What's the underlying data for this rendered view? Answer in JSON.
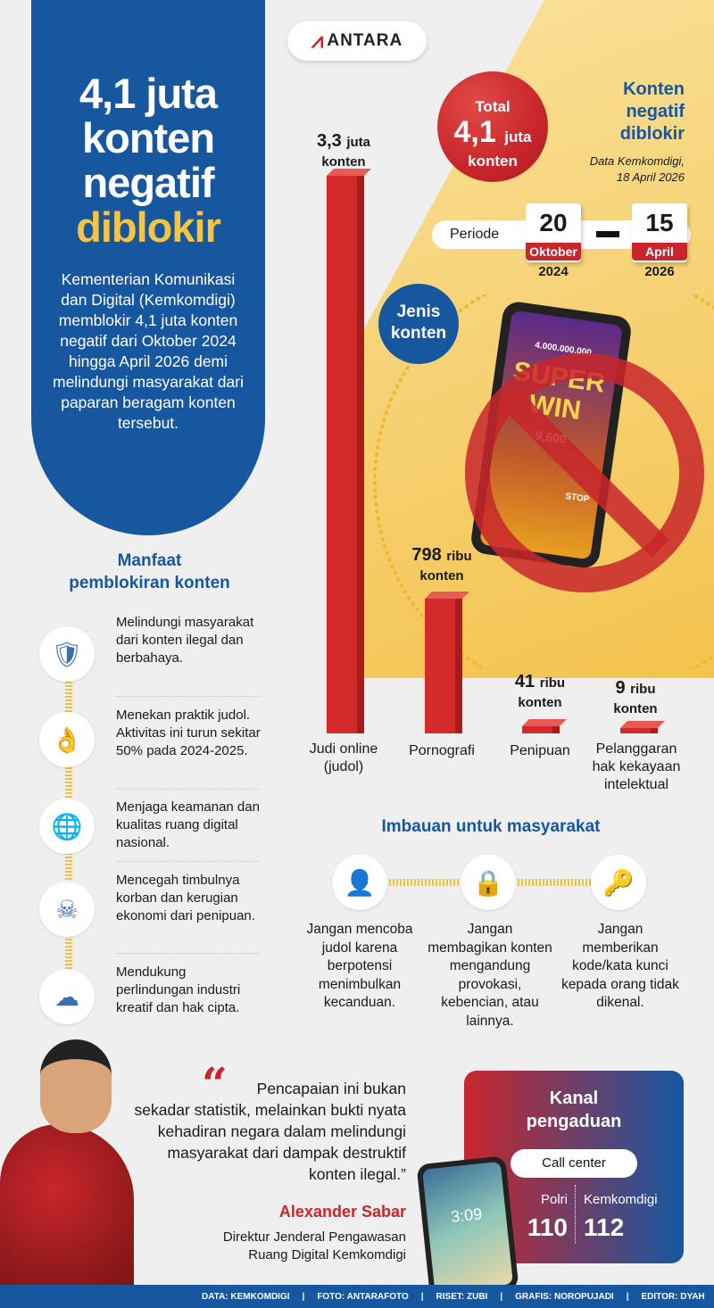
{
  "brand": {
    "logo_text": "ANTARA"
  },
  "header": {
    "title_line1": "4,1 juta",
    "title_line2": "konten",
    "title_line3": "negatif",
    "title_line4": "diblokir",
    "intro": "Kementerian Komunikasi dan Digital (Kemkomdigi) memblokir 4,1 juta konten negatif dari Oktober 2024 hingga April 2026 demi melindungi masyarakat dari paparan beragam konten tersebut."
  },
  "total": {
    "label": "Total",
    "value": "4,1",
    "unit": "juta",
    "suffix": "konten"
  },
  "side_title": {
    "line1": "Konten",
    "line2": "negatif",
    "line3": "diblokir",
    "source_line1": "Data Kemkomdigi,",
    "source_line2": "18 April 2026"
  },
  "periode": {
    "label": "Periode",
    "start_day": "20",
    "start_month": "Oktober",
    "start_year": "2024",
    "end_day": "15",
    "end_month": "April",
    "end_year": "2026"
  },
  "jenis_label": {
    "line1": "Jenis",
    "line2": "konten"
  },
  "chart_data": {
    "type": "bar",
    "categories": [
      "Judi online (judol)",
      "Pornografi",
      "Penipuan",
      "Pelanggaran hak kekayaan intelektual"
    ],
    "values": [
      3300000,
      798000,
      41000,
      9000
    ],
    "value_labels": [
      {
        "num": "3,3",
        "unit": "juta",
        "suffix": "konten"
      },
      {
        "num": "798",
        "unit": "ribu",
        "suffix": "konten"
      },
      {
        "num": "41",
        "unit": "ribu",
        "suffix": "konten"
      },
      {
        "num": "9",
        "unit": "ribu",
        "suffix": "konten"
      }
    ],
    "category_lines": [
      [
        "Judi online",
        "(judol)"
      ],
      [
        "Pornografi"
      ],
      [
        "Penipuan"
      ],
      [
        "Pelanggaran",
        "hak kekayaan",
        "intelektual"
      ]
    ],
    "bar_color": "#d42a2a",
    "grid": false
  },
  "phone_image": {
    "screen_amount": "4.000.000.000",
    "screen_text1": "SUPER",
    "screen_text2": "WIN",
    "screen_small": "9,600",
    "stop": "STOP"
  },
  "manfaat": {
    "title_line1": "Manfaat",
    "title_line2": "pemblokiran konten",
    "items": [
      {
        "icon": "shield-hand-icon",
        "text": "Melindungi masyarakat dari konten ilegal dan berbahaya."
      },
      {
        "icon": "hand-coin-icon",
        "text": "Menekan praktik judol. Aktivitas ini turun sekitar 50% pada 2024-2025."
      },
      {
        "icon": "monitor-globe-lock-icon",
        "text": "Menjaga keamanan dan kualitas ruang digital nasional."
      },
      {
        "icon": "monitor-skull-icon",
        "text": "Mencegah timbulnya korban dan kerugian ekonomi dari penipuan."
      },
      {
        "icon": "cloud-media-icon",
        "text": "Mendukung perlindungan industri kreatif dan hak cipta."
      }
    ]
  },
  "imbauan": {
    "title": "Imbauan untuk masyarakat",
    "items": [
      {
        "icon": "person-laptop-icon",
        "text": "Jangan mencoba judol karena berpotensi menimbulkan kecanduan."
      },
      {
        "icon": "phone-lock-icon",
        "text": "Jangan membagikan konten mengandung provokasi, kebencian, atau lainnya."
      },
      {
        "icon": "key-password-icon",
        "text": "Jangan memberikan kode/kata kunci kepada orang tidak dikenal."
      }
    ]
  },
  "quote": {
    "text": "Pencapaian ini bukan sekadar statistik, melainkan bukti nyata kehadiran negara dalam melindungi masyarakat dari dampak destruktif konten ilegal.”",
    "name": "Alexander Sabar",
    "role_line1": "Direktur Jenderal Pengawasan",
    "role_line2": "Ruang Digital Kemkomdigi"
  },
  "kanal": {
    "title_line1": "Kanal",
    "title_line2": "pengaduan",
    "call_center": "Call center",
    "left_label": "Polri",
    "left_number": "110",
    "right_label": "Kemkomdigi",
    "right_number": "112",
    "phone_time": "3:09"
  },
  "footer": [
    "DATA: KEMKOMDIGI",
    "|",
    "FOTO: ANTARAFOTO",
    "|",
    "RISET: ZUBI",
    "|",
    "GRAFIS: NOROPUJADI",
    "|",
    "EDITOR: DYAH"
  ],
  "colors": {
    "blue": "#1657a0",
    "red": "#c8262c",
    "yellow": "#f5c445"
  }
}
